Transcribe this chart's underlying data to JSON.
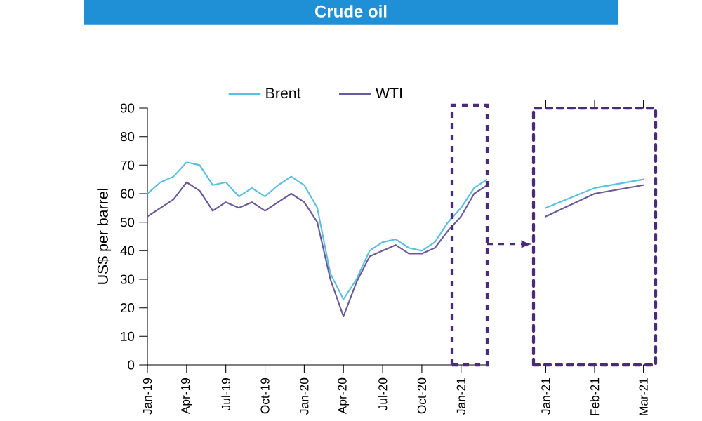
{
  "chart_data": [
    {
      "type": "line",
      "title": "Crude oil",
      "ylabel": "US$ per barrel",
      "categories": [
        "Jan-19",
        null,
        null,
        "Apr-19",
        null,
        null,
        "Jul-19",
        null,
        null,
        "Oct-19",
        null,
        null,
        "Jan-20",
        null,
        null,
        "Apr-20",
        null,
        null,
        "Jul-20",
        null,
        null,
        "Oct-20",
        null,
        null,
        "Jan-21",
        null,
        null
      ],
      "series": [
        {
          "name": "Brent",
          "color": "#5bbfe0",
          "values": [
            60,
            64,
            66,
            71,
            70,
            63,
            64,
            59,
            62,
            59,
            63,
            66,
            63,
            55,
            32,
            23,
            30,
            40,
            43,
            44,
            41,
            40,
            43,
            50,
            55,
            62,
            65
          ]
        },
        {
          "name": "WTI",
          "color": "#6a5a9a",
          "values": [
            52,
            55,
            58,
            64,
            61,
            54,
            57,
            55,
            57,
            54,
            57,
            60,
            57,
            50,
            30,
            17,
            29,
            38,
            40,
            42,
            39,
            39,
            41,
            47,
            52,
            60,
            63
          ]
        }
      ],
      "ylim": [
        0,
        90
      ],
      "yticks": [
        0,
        10,
        20,
        30,
        40,
        50,
        60,
        70,
        80,
        90
      ],
      "grid": false,
      "legend": "top",
      "marker": "none",
      "line_style": "solid"
    },
    {
      "type": "line",
      "categories": [
        "Jan-21",
        "Feb-21",
        "Mar-21"
      ],
      "series": [
        {
          "color": "#5bbfe0",
          "values": [
            55,
            62,
            65
          ]
        },
        {
          "color": "#6a5a9a",
          "values": [
            52,
            60,
            63
          ]
        }
      ],
      "ylim": [
        0,
        90
      ],
      "tick_labels": "x",
      "marker": "none",
      "line_style": "solid"
    }
  ]
}
